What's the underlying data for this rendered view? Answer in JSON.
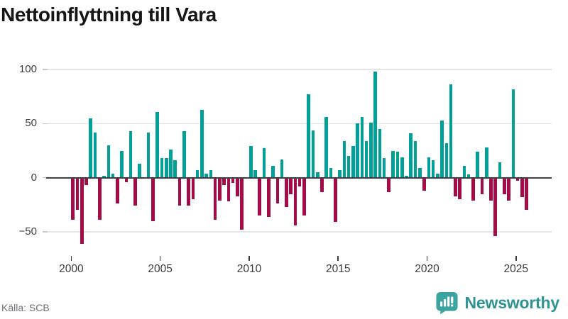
{
  "title": "Nettoinflyttning till Vara",
  "source": "Källa: SCB",
  "logo": {
    "name": "Newsworthy",
    "icon": "newsworthy-bubble-chart-icon"
  },
  "colors": {
    "positive_bar": "#00a099",
    "negative_bar": "#a30c49",
    "gridline": "#e4e4e4",
    "zero_axis": "#3f3f3f",
    "axis_text": "#3c3c3c",
    "title_text": "#151515",
    "source_text": "#6f6f78",
    "logo_teal": "#2d9492",
    "background": "#ffffff"
  },
  "chart_data": {
    "type": "bar",
    "title": "Nettoinflyttning till Vara",
    "frequency": "quarterly",
    "x_start": {
      "year": 2000,
      "quarter": 1
    },
    "x_tick_years": [
      2000,
      2005,
      2010,
      2015,
      2020,
      2025
    ],
    "y_ticks": [
      100,
      50,
      0,
      -50
    ],
    "ylim": [
      -65,
      105
    ],
    "grid": "horizontal",
    "legend": "none",
    "values": [
      -39,
      -30,
      -61,
      -7,
      55,
      42,
      -39,
      2,
      30,
      4,
      -24,
      25,
      -4,
      43,
      -26,
      13,
      0,
      42,
      -40,
      61,
      18,
      18,
      26,
      16,
      -26,
      43,
      -26,
      -20,
      7,
      63,
      4,
      7,
      -39,
      -21,
      -7,
      -22,
      -5,
      -17,
      -48,
      0,
      29,
      7,
      -35,
      27,
      -36,
      11,
      -24,
      17,
      -27,
      -15,
      -44,
      -8,
      -35,
      77,
      44,
      5,
      -13,
      56,
      9,
      -41,
      7,
      34,
      20,
      29,
      50,
      56,
      34,
      51,
      98,
      45,
      18,
      -13,
      25,
      24,
      19,
      2,
      41,
      34,
      9,
      -12,
      19,
      16,
      4,
      53,
      32,
      86,
      -17,
      -20,
      11,
      3,
      -21,
      24,
      -15,
      28,
      -21,
      -54,
      14,
      -15,
      -21,
      82,
      -3,
      -18,
      -30
    ]
  }
}
